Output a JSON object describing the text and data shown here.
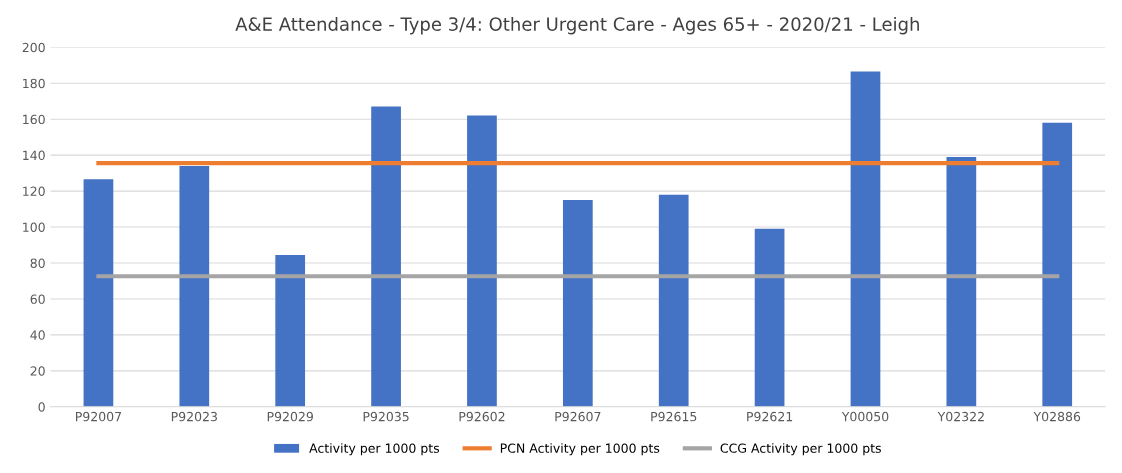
{
  "chart_data": {
    "type": "bar",
    "title": "A&E Attendance - Type 3/4: Other Urgent Care - Ages 65+ - 2020/21 - Leigh",
    "categories": [
      "P92007",
      "P92023",
      "P92029",
      "P92035",
      "P92602",
      "P92607",
      "P92615",
      "P92621",
      "Y00050",
      "Y02322",
      "Y02886"
    ],
    "series": [
      {
        "name": "Activity per 1000 pts",
        "color": "#4472c4",
        "values": [
          126.6,
          134,
          84.5,
          167,
          162,
          115,
          118,
          99,
          186.5,
          139,
          158
        ]
      },
      {
        "name": "PCN Activity per 1000 pts",
        "color": "#ed7d31",
        "type": "line",
        "values": [
          135.6,
          135.6,
          135.6,
          135.6,
          135.6,
          135.6,
          135.6,
          135.6,
          135.6,
          135.6,
          135.6
        ]
      },
      {
        "name": "CCG Activity per 1000 pts",
        "color": "#a5a5a5",
        "type": "line",
        "values": [
          72.6,
          72.6,
          72.6,
          72.6,
          72.6,
          72.6,
          72.6,
          72.6,
          72.6,
          72.6,
          72.6
        ]
      }
    ],
    "ylim": [
      0,
      200
    ],
    "yticks": [
      0,
      20,
      40,
      60,
      80,
      100,
      120,
      140,
      160,
      180,
      200
    ],
    "grid": "y",
    "legend": "bottom"
  }
}
